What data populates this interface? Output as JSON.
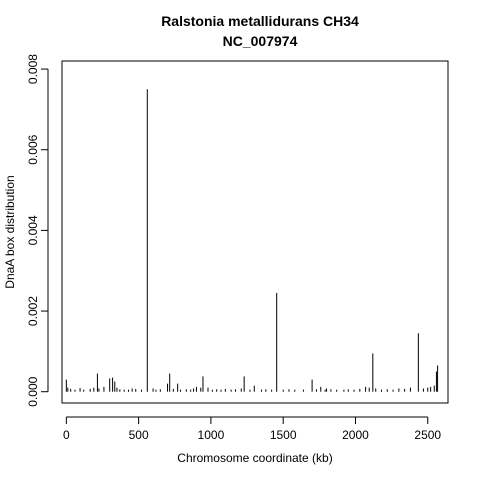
{
  "chart_data": {
    "type": "bar",
    "title": "Ralstonia metallidurans CH34",
    "subtitle": "NC_007974",
    "xlabel": "Chromosome coordinate (kb)",
    "ylabel": "DnaA box distribution",
    "xlim": [
      -30,
      2640
    ],
    "ylim": [
      -0.00028,
      0.0082
    ],
    "xticks": [
      0,
      500,
      1000,
      1500,
      2000,
      2500
    ],
    "yticks": [
      "0.000",
      "0.002",
      "0.004",
      "0.006",
      "0.008"
    ],
    "ytick_values": [
      0,
      0.002,
      0.004,
      0.006,
      0.008
    ],
    "grid": false,
    "bar_color": "#000000",
    "x": [
      0,
      10,
      30,
      60,
      95,
      120,
      165,
      190,
      215,
      225,
      260,
      300,
      320,
      335,
      350,
      370,
      400,
      430,
      455,
      480,
      520,
      560,
      600,
      620,
      650,
      700,
      715,
      740,
      770,
      790,
      830,
      860,
      880,
      900,
      930,
      945,
      980,
      1010,
      1040,
      1070,
      1100,
      1140,
      1170,
      1210,
      1230,
      1270,
      1300,
      1350,
      1380,
      1420,
      1455,
      1500,
      1540,
      1580,
      1640,
      1700,
      1730,
      1760,
      1790,
      1800,
      1830,
      1870,
      1920,
      1950,
      1990,
      2030,
      2070,
      2095,
      2120,
      2140,
      2180,
      2220,
      2260,
      2300,
      2340,
      2380,
      2435,
      2470,
      2500,
      2520,
      2545,
      2560,
      2568
    ],
    "values": [
      0.0003,
      0.0001,
      7e-05,
      5e-05,
      9e-05,
      5e-05,
      7e-05,
      0.0001,
      0.00045,
      8e-05,
      0.00012,
      0.00033,
      0.00035,
      0.00025,
      0.0001,
      6e-05,
      5e-05,
      5e-05,
      8e-05,
      7e-05,
      5e-05,
      0.0075,
      8e-05,
      5e-05,
      6e-05,
      0.0002,
      0.00045,
      7e-05,
      0.0002,
      5e-05,
      6e-05,
      5e-05,
      8e-05,
      0.00012,
      0.0001,
      0.00038,
      0.0001,
      5e-05,
      6e-05,
      5e-05,
      7e-05,
      5e-05,
      6e-05,
      8e-05,
      0.00038,
      5e-05,
      0.00015,
      5e-05,
      6e-05,
      5e-05,
      0.00245,
      5e-05,
      6e-05,
      5e-05,
      5e-05,
      0.0003,
      6e-05,
      0.00012,
      5e-05,
      8e-05,
      6e-05,
      5e-05,
      5e-05,
      6e-05,
      5e-05,
      7e-05,
      0.00012,
      0.0001,
      0.00095,
      8e-05,
      5e-05,
      6e-05,
      5e-05,
      8e-05,
      7e-05,
      0.0001,
      0.00145,
      8e-05,
      0.0001,
      0.00012,
      0.00015,
      0.0005,
      0.00065
    ]
  }
}
